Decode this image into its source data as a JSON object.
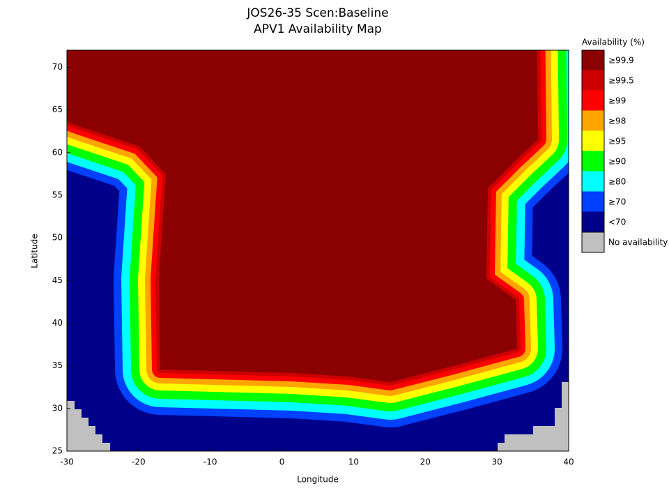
{
  "chart_data": {
    "type": "map",
    "title": "JOS26-35 Scen:Baseline",
    "subtitle": "APV1 Availability Map",
    "x_label": "Longitude",
    "y_label": "Latitude",
    "xlim": [
      -30,
      40
    ],
    "xticks": [
      -30,
      -20,
      -10,
      0,
      10,
      20,
      30,
      40
    ],
    "ylim": [
      25,
      72
    ],
    "yticks": [
      25,
      30,
      35,
      40,
      45,
      50,
      55,
      60,
      65,
      70
    ],
    "legend": {
      "title": "Availability (%)",
      "items": [
        {
          "label": "≥99.9",
          "color": "#8b0000"
        },
        {
          "label": "≥99.5",
          "color": "#cd0000"
        },
        {
          "label": "≥99",
          "color": "#ff0000"
        },
        {
          "label": "≥98",
          "color": "#ffa500"
        },
        {
          "label": "≥95",
          "color": "#ffff00"
        },
        {
          "label": "≥90",
          "color": "#00ff00"
        },
        {
          "label": "≥80",
          "color": "#00ffff"
        },
        {
          "label": "≥70",
          "color": "#0040ff"
        },
        {
          "label": "<70",
          "color": "#00008b"
        },
        {
          "label": "No availability",
          "color": "#c0c0c0"
        }
      ]
    }
  }
}
